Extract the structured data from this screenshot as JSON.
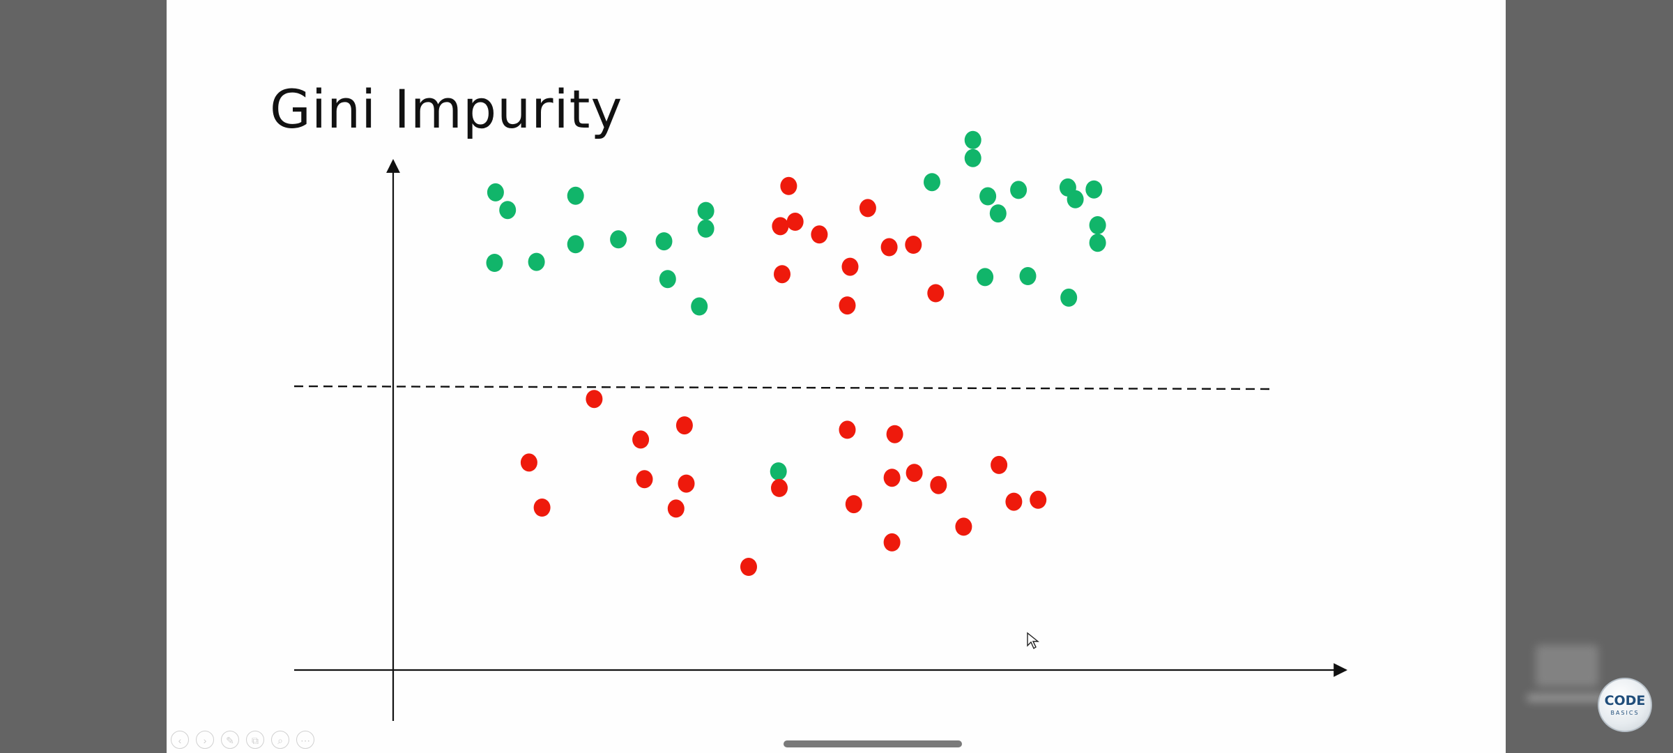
{
  "slide": {
    "title": "Gini Impurity"
  },
  "colors": {
    "green": "#11b56a",
    "red": "#ee1a0c",
    "axis": "#111111",
    "divider": "#111111",
    "background": "#fefefe",
    "letterbox": "#646464"
  },
  "chart_data": {
    "type": "scatter",
    "title": "Gini Impurity",
    "xlabel": "",
    "ylabel": "",
    "grid": false,
    "xlim": [
      0,
      100
    ],
    "ylim": [
      0,
      100
    ],
    "split_line": {
      "style": "dashed",
      "y": 50
    },
    "series": [
      {
        "color": "#11b56a",
        "points": [
          [
            11.0,
            88.9
          ],
          [
            12.3,
            85.3
          ],
          [
            10.9,
            74.5
          ],
          [
            15.4,
            74.7
          ],
          [
            19.6,
            88.2
          ],
          [
            19.6,
            78.3
          ],
          [
            24.2,
            79.3
          ],
          [
            29.1,
            78.9
          ],
          [
            29.5,
            71.2
          ],
          [
            33.6,
            85.1
          ],
          [
            33.6,
            81.5
          ],
          [
            32.9,
            65.6
          ],
          [
            41.4,
            31.9
          ],
          [
            57.9,
            91.0
          ],
          [
            62.3,
            99.6
          ],
          [
            62.3,
            95.9
          ],
          [
            63.9,
            88.1
          ],
          [
            65.0,
            84.6
          ],
          [
            67.2,
            89.4
          ],
          [
            63.6,
            71.6
          ],
          [
            68.2,
            71.8
          ],
          [
            72.5,
            89.9
          ],
          [
            73.3,
            87.5
          ],
          [
            72.6,
            67.4
          ],
          [
            75.3,
            89.5
          ],
          [
            75.7,
            82.2
          ],
          [
            75.7,
            78.6
          ]
        ]
      },
      {
        "color": "#ee1a0c",
        "points": [
          [
            42.5,
            90.2
          ],
          [
            41.6,
            82.0
          ],
          [
            43.2,
            82.9
          ],
          [
            45.8,
            80.3
          ],
          [
            51.0,
            85.7
          ],
          [
            41.8,
            72.2
          ],
          [
            49.1,
            73.7
          ],
          [
            53.3,
            77.7
          ],
          [
            55.9,
            78.2
          ],
          [
            48.8,
            65.8
          ],
          [
            58.3,
            68.3
          ],
          [
            21.6,
            46.7
          ],
          [
            31.3,
            41.3
          ],
          [
            26.6,
            38.4
          ],
          [
            48.8,
            40.4
          ],
          [
            53.9,
            39.5
          ],
          [
            14.6,
            33.7
          ],
          [
            27.0,
            30.3
          ],
          [
            31.5,
            29.4
          ],
          [
            16.0,
            24.5
          ],
          [
            30.4,
            24.3
          ],
          [
            41.5,
            28.5
          ],
          [
            49.5,
            25.2
          ],
          [
            53.6,
            30.6
          ],
          [
            56.0,
            31.6
          ],
          [
            58.6,
            29.1
          ],
          [
            65.1,
            33.2
          ],
          [
            66.7,
            25.7
          ],
          [
            69.3,
            26.1
          ],
          [
            61.3,
            20.6
          ],
          [
            53.6,
            17.4
          ],
          [
            38.2,
            12.4
          ]
        ]
      }
    ]
  },
  "controls": {
    "items": [
      "‹",
      "›",
      "✎",
      "⧉",
      "⌕",
      "⋯"
    ]
  },
  "logo": {
    "main": "CODE",
    "sub": "BASICS"
  }
}
